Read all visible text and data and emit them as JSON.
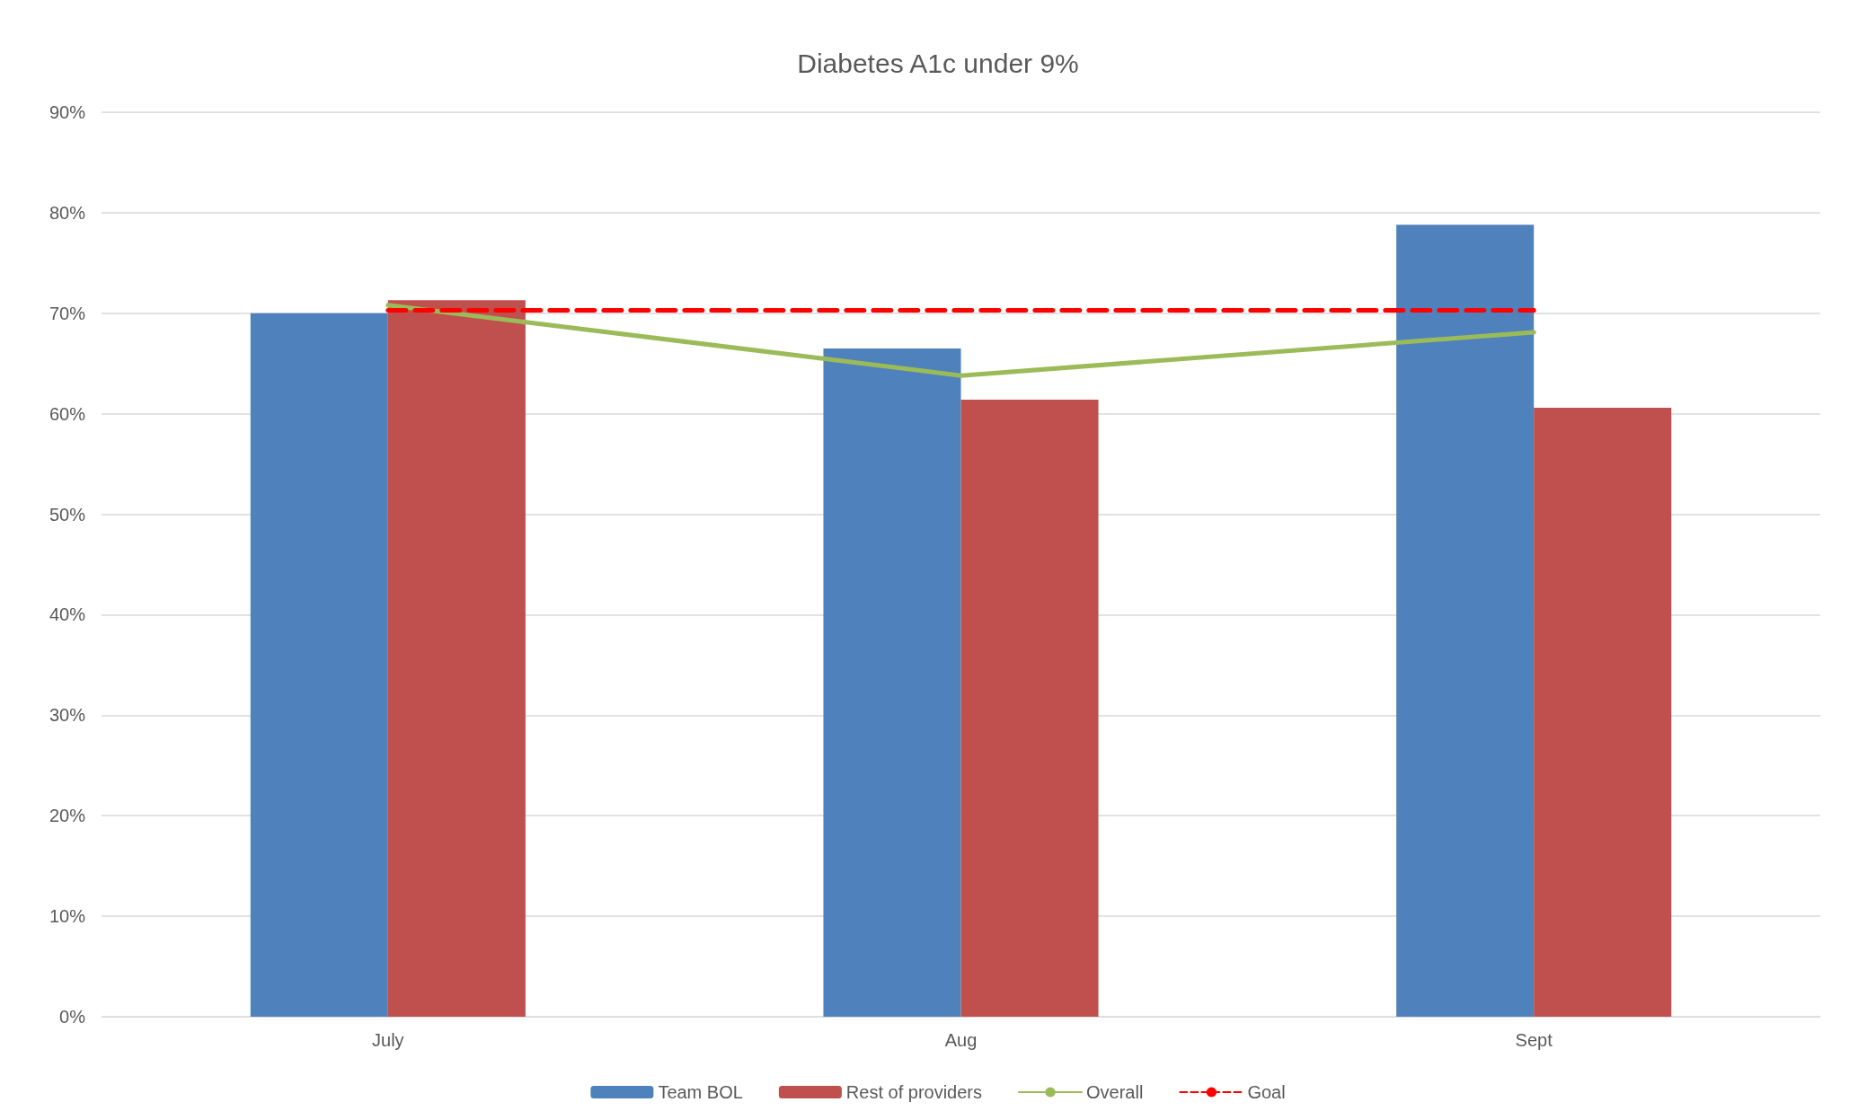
{
  "chart_data": {
    "type": "bar",
    "title": "Diabetes A1c under 9%",
    "categories": [
      "July",
      "Aug",
      "Sept"
    ],
    "series": [
      {
        "name": "Team BOL",
        "color": "#4f81bd",
        "values": [
          70,
          66.5,
          78.8
        ]
      },
      {
        "name": "Rest of providers",
        "color": "#c0504d",
        "values": [
          71.3,
          61.4,
          60.6
        ]
      },
      {
        "name": "Overall",
        "type": "line",
        "color": "#9bbb59",
        "values": [
          70.8,
          63.8,
          68.1
        ]
      },
      {
        "name": "Goal",
        "type": "line",
        "color": "#ff0000",
        "line_style": "dashed",
        "values": [
          70.3,
          70.3,
          70.3
        ]
      }
    ],
    "ylim": [
      0,
      90
    ],
    "yticks": [
      {
        "value": 0,
        "label": "0%"
      },
      {
        "value": 10,
        "label": "10%"
      },
      {
        "value": 20,
        "label": "20%"
      },
      {
        "value": 30,
        "label": "30%"
      },
      {
        "value": 40,
        "label": "40%"
      },
      {
        "value": 50,
        "label": "50%"
      },
      {
        "value": 60,
        "label": "60%"
      },
      {
        "value": 70,
        "label": "70%"
      },
      {
        "value": 80,
        "label": "80%"
      },
      {
        "value": 90,
        "label": "90%"
      }
    ],
    "grid": "y",
    "legend": "bottom",
    "marker": "none"
  }
}
